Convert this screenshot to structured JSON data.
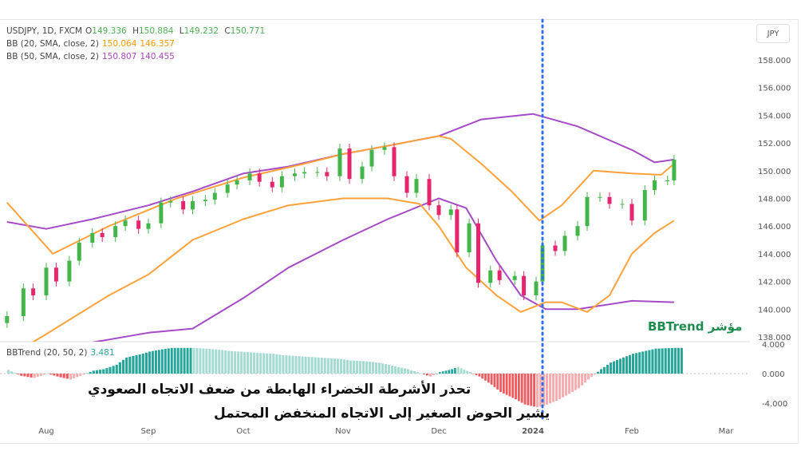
{
  "legend": {
    "symbol": "USDJPY, 1D, FXCM",
    "o_label": "O",
    "o": "149.336",
    "h_label": "H",
    "h": "150.884",
    "l_label": "L",
    "l": "149.232",
    "c_label": "C",
    "c": "150.771",
    "bb20_label": "BB (20, SMA, close, 2)",
    "bb20_upper": "150.064",
    "bb20_lower": "146.357",
    "bb50_label": "BB (50, SMA, close, 2)",
    "bb50_upper": "150.807",
    "bb50_lower": "140.455",
    "bbtrend_label": "BBTrend (20, 50, 2)",
    "bbtrend_value": "3.481"
  },
  "currency": "JPY",
  "annotations": {
    "line1": "تحذر الأشرطة الخضراء الهابطة من ضعف الاتجاه الصعودي",
    "line2": "يشير الحوض الصغير إلى الاتجاه المنخفض المحتمل",
    "indicator_tag": "مؤشر BBTrend"
  },
  "colors": {
    "up": "#43b649",
    "down": "#e5266e",
    "bb20": "#ffa23c",
    "bb50": "#a64bc7",
    "trend_up": "#26a69a",
    "trend_up_fade": "#a5dbd3",
    "trend_down": "#f05a5e",
    "trend_down_fade": "#f7aeb0",
    "marker": "#2f6fe8"
  },
  "chart_data": {
    "type": "candlestick",
    "price_axis": {
      "ticks": [
        "158.000",
        "156.000",
        "154.000",
        "152.000",
        "150.000",
        "148.000",
        "146.000",
        "144.000",
        "142.000",
        "140.000",
        "138.000"
      ],
      "range": [
        137.5,
        159
      ]
    },
    "time_axis": {
      "ticks": [
        "Aug",
        "Sep",
        "Oct",
        "Nov",
        "Dec",
        "2024",
        "Feb",
        "Mar"
      ]
    },
    "marker_date": "2024-01-04",
    "closes": [
      [
        "2023-07-20",
        139.5
      ],
      [
        "2023-07-25",
        141.5
      ],
      [
        "2023-07-28",
        141
      ],
      [
        "2023-08-01",
        143
      ],
      [
        "2023-08-04",
        142
      ],
      [
        "2023-08-08",
        143.5
      ],
      [
        "2023-08-11",
        144.8
      ],
      [
        "2023-08-15",
        145.5
      ],
      [
        "2023-08-18",
        145.2
      ],
      [
        "2023-08-22",
        146
      ],
      [
        "2023-08-25",
        146.4
      ],
      [
        "2023-08-29",
        145.8
      ],
      [
        "2023-09-01",
        146.2
      ],
      [
        "2023-09-05",
        147.7
      ],
      [
        "2023-09-08",
        147.8
      ],
      [
        "2023-09-12",
        147.2
      ],
      [
        "2023-09-15",
        147.8
      ],
      [
        "2023-09-19",
        147.9
      ],
      [
        "2023-09-22",
        148.4
      ],
      [
        "2023-09-26",
        149
      ],
      [
        "2023-09-29",
        149.3
      ],
      [
        "2023-10-03",
        149.8
      ],
      [
        "2023-10-06",
        149.2
      ],
      [
        "2023-10-10",
        148.8
      ],
      [
        "2023-10-13",
        149.6
      ],
      [
        "2023-10-17",
        149.8
      ],
      [
        "2023-10-20",
        149.9
      ],
      [
        "2023-10-24",
        149.9
      ],
      [
        "2023-10-27",
        149.6
      ],
      [
        "2023-10-31",
        151.6
      ],
      [
        "2023-11-03",
        149.4
      ],
      [
        "2023-11-07",
        150.3
      ],
      [
        "2023-11-10",
        151.5
      ],
      [
        "2023-11-14",
        151.7
      ],
      [
        "2023-11-17",
        149.6
      ],
      [
        "2023-11-21",
        148.4
      ],
      [
        "2023-11-24",
        149.4
      ],
      [
        "2023-11-28",
        147.5
      ],
      [
        "2023-12-01",
        146.8
      ],
      [
        "2023-12-05",
        147.2
      ],
      [
        "2023-12-07",
        144.1
      ],
      [
        "2023-12-11",
        146.2
      ],
      [
        "2023-12-14",
        141.9
      ],
      [
        "2023-12-18",
        142.8
      ],
      [
        "2023-12-21",
        142.1
      ],
      [
        "2023-12-26",
        142.4
      ],
      [
        "2023-12-29",
        141
      ],
      [
        "2024-01-02",
        142
      ],
      [
        "2024-01-04",
        144.6
      ],
      [
        "2024-01-08",
        144.2
      ],
      [
        "2024-01-11",
        145.3
      ],
      [
        "2024-01-15",
        146
      ],
      [
        "2024-01-18",
        148.1
      ],
      [
        "2024-01-22",
        148.1
      ],
      [
        "2024-01-25",
        147.6
      ],
      [
        "2024-01-29",
        147.6
      ],
      [
        "2024-02-01",
        146.4
      ],
      [
        "2024-02-05",
        148.6
      ],
      [
        "2024-02-08",
        149.3
      ],
      [
        "2024-02-12",
        149.3
      ],
      [
        "2024-02-14",
        150.8
      ]
    ],
    "bb20_upper": [
      [
        "2023-07-20",
        147.7
      ],
      [
        "2023-08-03",
        144
      ],
      [
        "2023-08-20",
        146
      ],
      [
        "2023-09-10",
        148
      ],
      [
        "2023-10-01",
        149.5
      ],
      [
        "2023-10-20",
        150.5
      ],
      [
        "2023-11-01",
        151.2
      ],
      [
        "2023-11-15",
        151.8
      ],
      [
        "2023-12-01",
        152.5
      ],
      [
        "2023-12-05",
        152.3
      ],
      [
        "2023-12-15",
        150.5
      ],
      [
        "2023-12-25",
        148.5
      ],
      [
        "2024-01-03",
        146.4
      ],
      [
        "2024-01-10",
        147.5
      ],
      [
        "2024-01-20",
        150
      ],
      [
        "2024-02-01",
        149.8
      ],
      [
        "2024-02-10",
        149.7
      ],
      [
        "2024-02-14",
        150.5
      ]
    ],
    "bb20_lower": [
      [
        "2023-07-20",
        136.5
      ],
      [
        "2023-08-01",
        138.2
      ],
      [
        "2023-08-20",
        141
      ],
      [
        "2023-09-01",
        142.5
      ],
      [
        "2023-09-15",
        145
      ],
      [
        "2023-10-01",
        146.5
      ],
      [
        "2023-10-15",
        147.5
      ],
      [
        "2023-11-01",
        148
      ],
      [
        "2023-11-15",
        148
      ],
      [
        "2023-11-25",
        147.6
      ],
      [
        "2023-12-01",
        146
      ],
      [
        "2023-12-10",
        143
      ],
      [
        "2023-12-20",
        141
      ],
      [
        "2023-12-28",
        139.8
      ],
      [
        "2024-01-05",
        140.5
      ],
      [
        "2024-01-10",
        140.5
      ],
      [
        "2024-01-18",
        139.8
      ],
      [
        "2024-01-25",
        141
      ],
      [
        "2024-02-01",
        144
      ],
      [
        "2024-02-08",
        145.5
      ],
      [
        "2024-02-14",
        146.4
      ]
    ],
    "bb50_upper": [
      [
        "2023-07-20",
        146.3
      ],
      [
        "2023-08-01",
        145.8
      ],
      [
        "2023-08-15",
        146.5
      ],
      [
        "2023-09-01",
        147.5
      ],
      [
        "2023-09-15",
        148.5
      ],
      [
        "2023-10-01",
        149.8
      ],
      [
        "2023-10-15",
        150.3
      ],
      [
        "2023-11-01",
        151.2
      ],
      [
        "2023-11-15",
        151.8
      ],
      [
        "2023-12-01",
        152.5
      ],
      [
        "2023-12-15",
        153.7
      ],
      [
        "2024-01-01",
        154.1
      ],
      [
        "2024-01-15",
        153.2
      ],
      [
        "2024-02-01",
        151.5
      ],
      [
        "2024-02-08",
        150.6
      ],
      [
        "2024-02-14",
        150.8
      ]
    ],
    "bb50_lower": [
      [
        "2023-08-15",
        137.6
      ],
      [
        "2023-09-01",
        138.3
      ],
      [
        "2023-09-15",
        138.6
      ],
      [
        "2023-10-01",
        140.8
      ],
      [
        "2023-10-15",
        143
      ],
      [
        "2023-11-01",
        145
      ],
      [
        "2023-11-15",
        146.5
      ],
      [
        "2023-12-01",
        148
      ],
      [
        "2023-12-10",
        147.3
      ],
      [
        "2023-12-20",
        143.5
      ],
      [
        "2023-12-28",
        141
      ],
      [
        "2024-01-05",
        140
      ],
      [
        "2024-01-15",
        140
      ],
      [
        "2024-02-01",
        140.6
      ],
      [
        "2024-02-14",
        140.5
      ]
    ],
    "bbtrend": {
      "axis_ticks": [
        "4.000",
        "0.000",
        "-4.000"
      ],
      "range": [
        -5,
        4.8
      ],
      "values": [
        [
          "2023-07-20",
          0.5
        ],
        [
          "2023-07-24",
          -0.3
        ],
        [
          "2023-07-28",
          -0.6
        ],
        [
          "2023-08-01",
          0
        ],
        [
          "2023-08-04",
          -0.4
        ],
        [
          "2023-08-08",
          -0.8
        ],
        [
          "2023-08-11",
          -0.3
        ],
        [
          "2023-08-15",
          0.4
        ],
        [
          "2023-08-18",
          0.6
        ],
        [
          "2023-08-22",
          1.2
        ],
        [
          "2023-08-25",
          2.2
        ],
        [
          "2023-08-29",
          2.6
        ],
        [
          "2023-09-01",
          3
        ],
        [
          "2023-09-05",
          3.3
        ],
        [
          "2023-09-08",
          3.5
        ],
        [
          "2023-09-12",
          3.5
        ],
        [
          "2023-09-15",
          3.5
        ],
        [
          "2023-09-19",
          3.4
        ],
        [
          "2023-09-22",
          3.3
        ],
        [
          "2023-09-26",
          3.1
        ],
        [
          "2023-09-29",
          3
        ],
        [
          "2023-10-03",
          2.9
        ],
        [
          "2023-10-06",
          2.8
        ],
        [
          "2023-10-10",
          2.7
        ],
        [
          "2023-10-13",
          2.5
        ],
        [
          "2023-10-17",
          2.4
        ],
        [
          "2023-10-20",
          2.3
        ],
        [
          "2023-10-24",
          2.2
        ],
        [
          "2023-10-27",
          2.1
        ],
        [
          "2023-10-31",
          2
        ],
        [
          "2023-11-03",
          1.8
        ],
        [
          "2023-11-07",
          1.7
        ],
        [
          "2023-11-10",
          1.6
        ],
        [
          "2023-11-14",
          1.3
        ],
        [
          "2023-11-17",
          1
        ],
        [
          "2023-11-21",
          0.6
        ],
        [
          "2023-11-24",
          0.2
        ],
        [
          "2023-11-28",
          -0.4
        ],
        [
          "2023-12-01",
          0.2
        ],
        [
          "2023-12-05",
          0.6
        ],
        [
          "2023-12-07",
          0.9
        ],
        [
          "2023-12-11",
          0.2
        ],
        [
          "2023-12-14",
          -0.4
        ],
        [
          "2023-12-18",
          -1.5
        ],
        [
          "2023-12-21",
          -2.5
        ],
        [
          "2023-12-26",
          -3.5
        ],
        [
          "2023-12-29",
          -4.2
        ],
        [
          "2024-01-02",
          -4.6
        ],
        [
          "2024-01-04",
          -4.4
        ],
        [
          "2024-01-08",
          -3.7
        ],
        [
          "2024-01-11",
          -3
        ],
        [
          "2024-01-15",
          -2
        ],
        [
          "2024-01-18",
          -0.8
        ],
        [
          "2024-01-22",
          0.6
        ],
        [
          "2024-01-25",
          1.5
        ],
        [
          "2024-01-29",
          2.2
        ],
        [
          "2024-02-01",
          2.7
        ],
        [
          "2024-02-05",
          3.1
        ],
        [
          "2024-02-08",
          3.4
        ],
        [
          "2024-02-14",
          3.5
        ]
      ]
    }
  }
}
